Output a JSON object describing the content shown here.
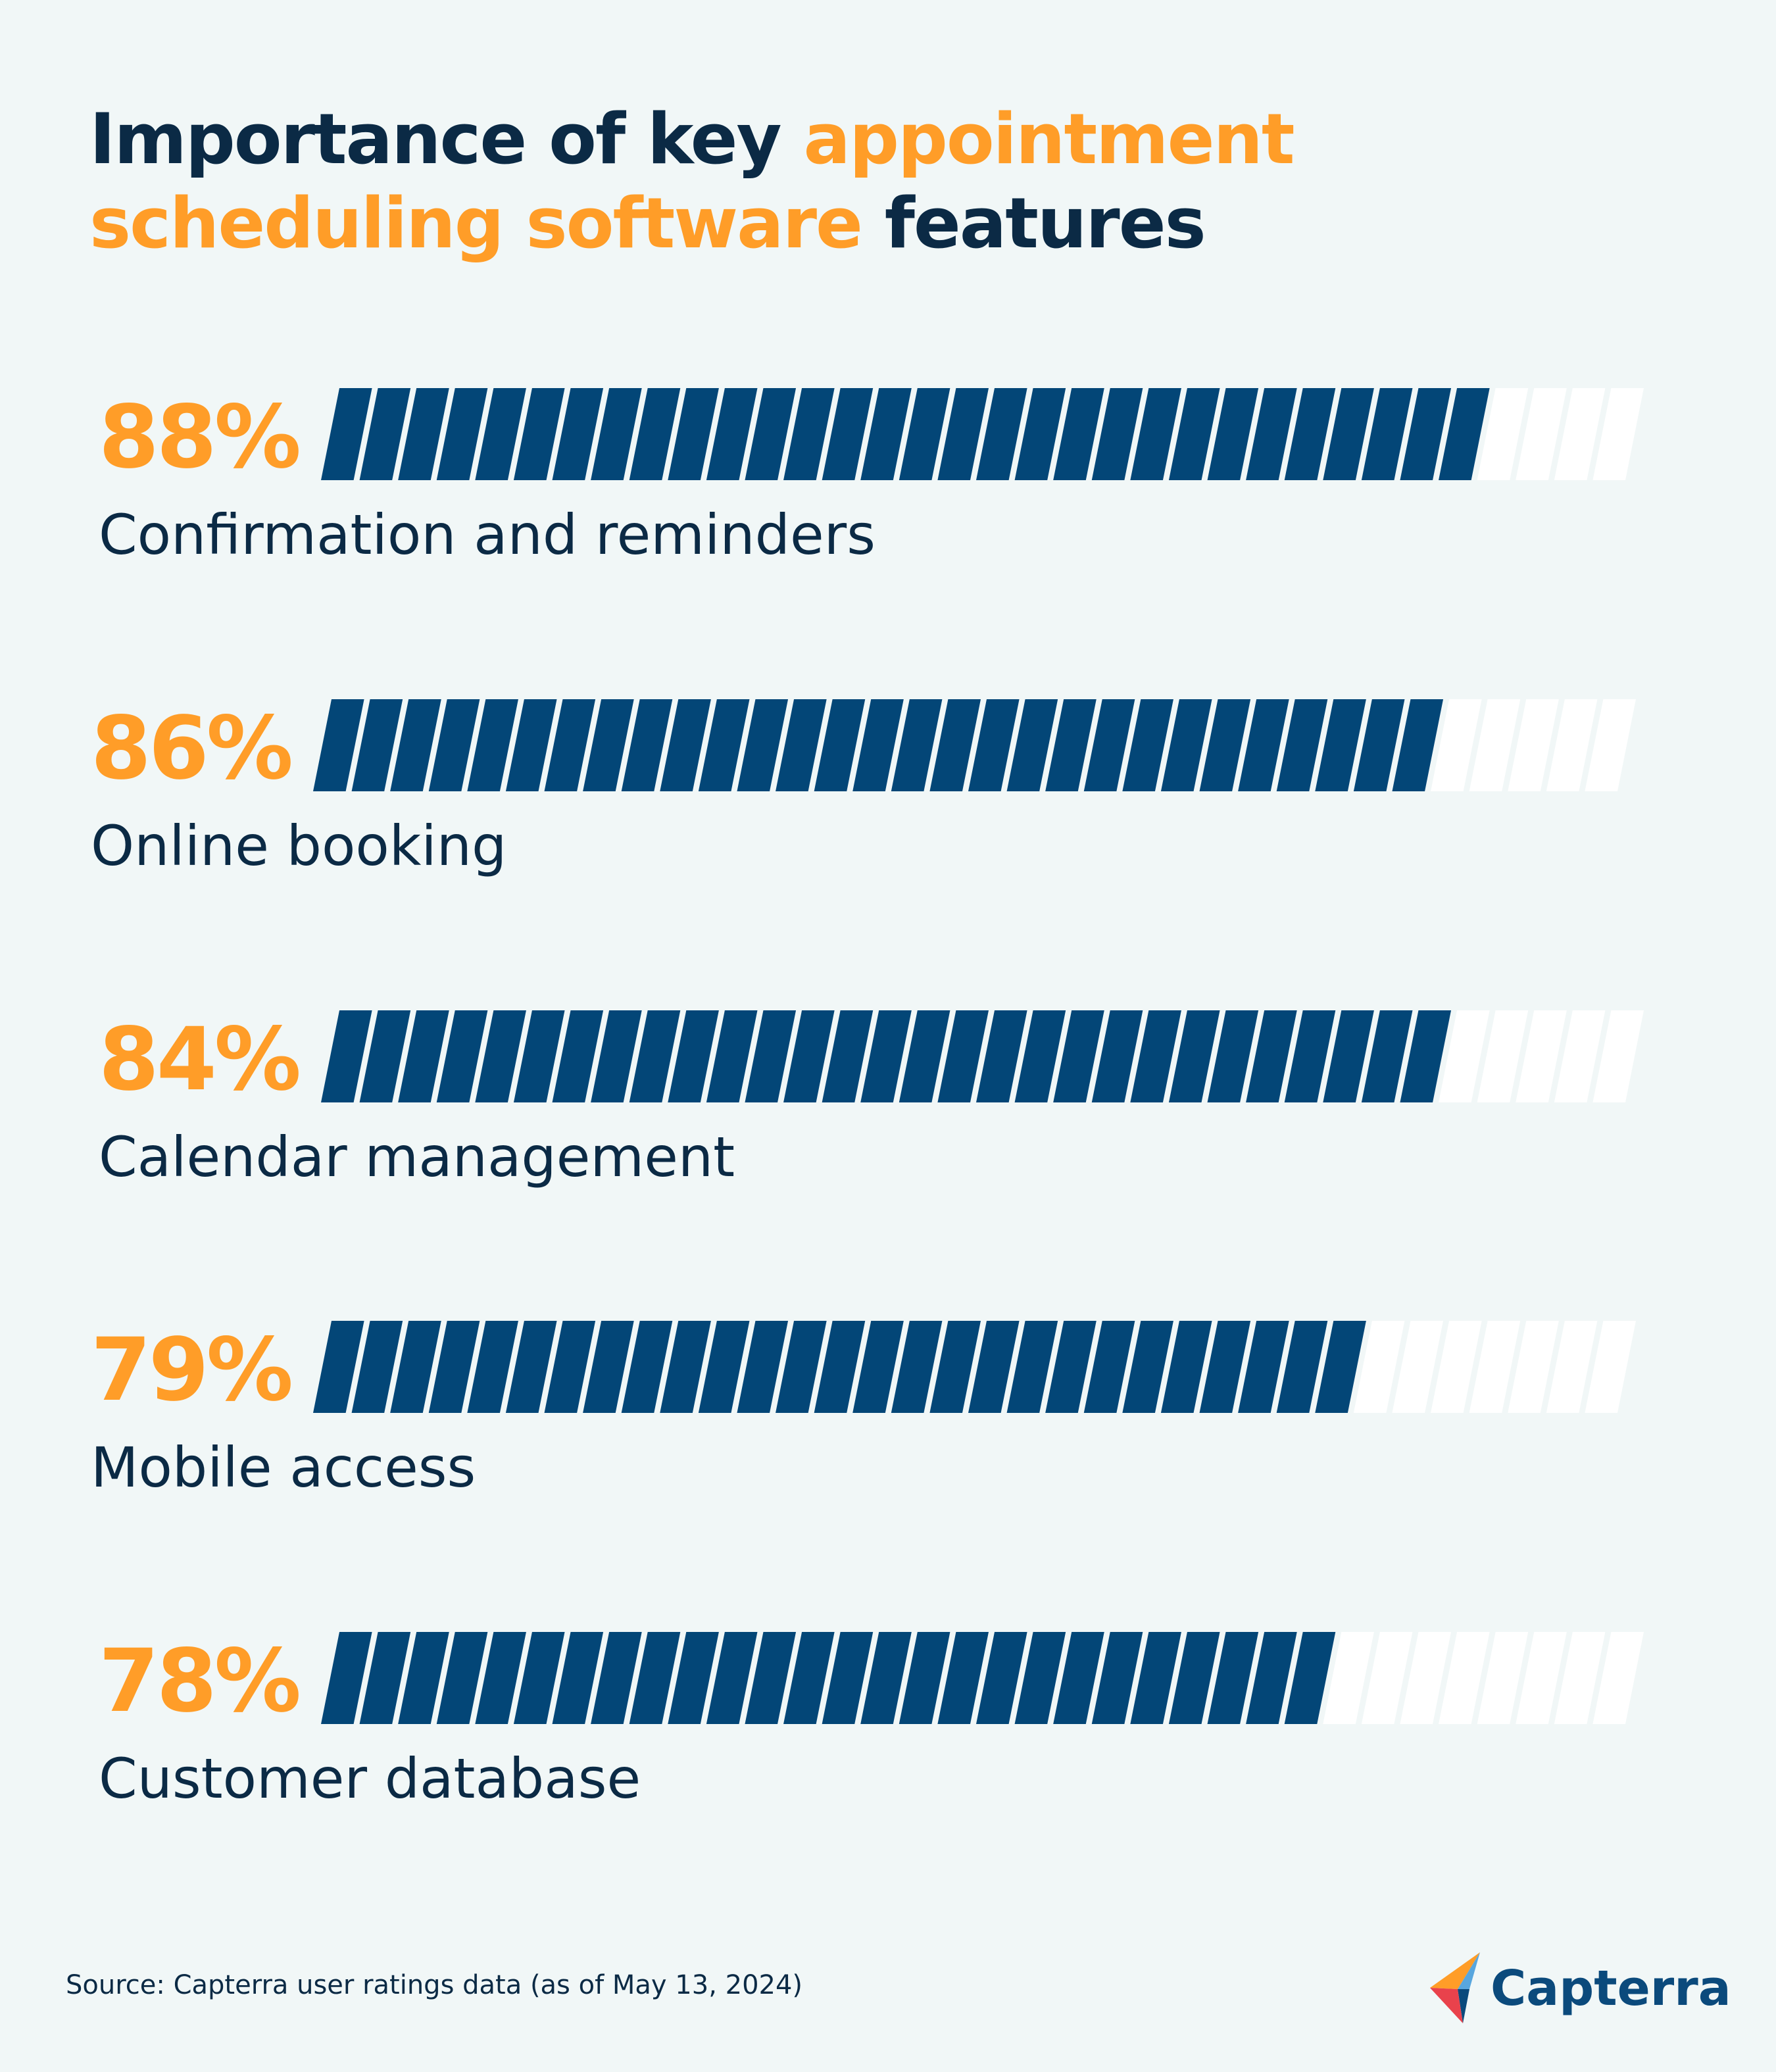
{
  "title": {
    "part1": "Importance of key ",
    "accent": "appointment scheduling software",
    "part2": " features"
  },
  "chart_data": {
    "type": "bar",
    "orientation": "horizontal",
    "categories": [
      "Confirmation and reminders",
      "Online booking",
      "Calendar management",
      "Mobile access",
      "Customer database"
    ],
    "values": [
      88,
      86,
      84,
      79,
      78
    ],
    "value_labels": [
      "88%",
      "86%",
      "84%",
      "79%",
      "78%"
    ],
    "xlim": [
      0,
      100
    ],
    "grid": false,
    "legend": "none"
  },
  "colors": {
    "filled": "#034677",
    "empty": "#ffffff",
    "accent": "#ff9d28",
    "text": "#0b2a45"
  },
  "source": "Source: Capterra user ratings data (as of May 13, 2024)",
  "logo": {
    "icon": "capterra-arrow-icon",
    "text": "Capterra"
  }
}
